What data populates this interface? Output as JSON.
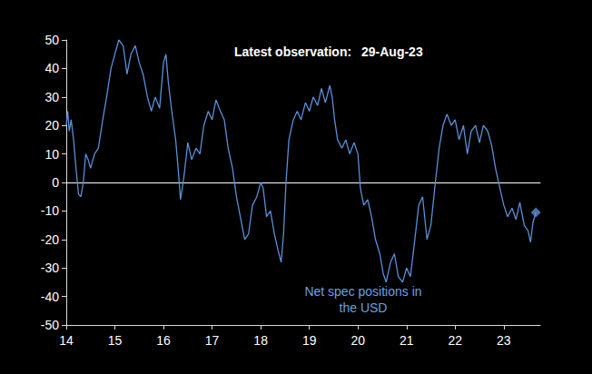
{
  "chart_data": {
    "type": "line",
    "annotations": [
      {
        "text": "Latest observation:"
      },
      {
        "text": "29-Aug-23"
      },
      {
        "text": "Net spec positions in\nthe USD"
      }
    ],
    "series": [
      {
        "type": "line",
        "color": "#5b8fd6",
        "line_style": "solid",
        "x": [
          14.0,
          14.03,
          14.06,
          14.1,
          14.15,
          14.2,
          14.25,
          14.3,
          14.35,
          14.4,
          14.45,
          14.5,
          14.58,
          14.66,
          14.75,
          14.83,
          14.92,
          15.0,
          15.08,
          15.17,
          15.25,
          15.33,
          15.42,
          15.5,
          15.58,
          15.67,
          15.75,
          15.83,
          15.92,
          16.0,
          16.05,
          16.1,
          16.17,
          16.25,
          16.3,
          16.35,
          16.42,
          16.5,
          16.58,
          16.67,
          16.75,
          16.83,
          16.92,
          17.0,
          17.08,
          17.17,
          17.25,
          17.33,
          17.42,
          17.5,
          17.58,
          17.67,
          17.75,
          17.83,
          17.92,
          18.0,
          18.05,
          18.12,
          18.2,
          18.28,
          18.36,
          18.42,
          18.47,
          18.52,
          18.58,
          18.67,
          18.75,
          18.83,
          18.92,
          19.0,
          19.08,
          19.17,
          19.25,
          19.33,
          19.42,
          19.47,
          19.52,
          19.58,
          19.67,
          19.75,
          19.83,
          19.92,
          20.0,
          20.05,
          20.12,
          20.2,
          20.28,
          20.36,
          20.45,
          20.52,
          20.58,
          20.67,
          20.75,
          20.83,
          20.92,
          21.0,
          21.08,
          21.17,
          21.25,
          21.33,
          21.42,
          21.5,
          21.58,
          21.67,
          21.75,
          21.83,
          21.92,
          22.0,
          22.08,
          22.17,
          22.25,
          22.33,
          22.42,
          22.5,
          22.58,
          22.67,
          22.75,
          22.83,
          22.92,
          23.0,
          23.08,
          23.17,
          23.25,
          23.33,
          23.42,
          23.5,
          23.55,
          23.6,
          23.66
        ],
        "values": [
          20,
          25,
          18,
          22,
          15,
          5,
          -4,
          -5,
          0,
          10,
          8,
          5,
          10,
          12,
          22,
          30,
          40,
          45,
          50,
          48,
          38,
          45,
          48,
          42,
          38,
          30,
          25,
          30,
          26,
          42,
          45,
          35,
          25,
          15,
          5,
          -6,
          2,
          14,
          8,
          12,
          10,
          20,
          25,
          22,
          29,
          25,
          22,
          12,
          5,
          -5,
          -12,
          -20,
          -18,
          -8,
          -5,
          0,
          -2,
          -12,
          -10,
          -18,
          -24,
          -28,
          -18,
          0,
          15,
          22,
          25,
          22,
          28,
          25,
          30,
          27,
          33,
          28,
          34,
          30,
          22,
          15,
          12,
          15,
          10,
          14,
          10,
          -2,
          -8,
          -6,
          -12,
          -20,
          -25,
          -32,
          -35,
          -28,
          -25,
          -33,
          -35,
          -30,
          -33,
          -20,
          -8,
          -5,
          -20,
          -15,
          -2,
          12,
          20,
          24,
          20,
          22,
          15,
          20,
          10,
          18,
          20,
          14,
          20,
          18,
          13,
          5,
          -2,
          -8,
          -12,
          -9,
          -13,
          -7,
          -15,
          -17,
          -21,
          -14,
          -10.5
        ]
      },
      {
        "type": "scatter",
        "color": "#5b8fd6",
        "marker": "diamond",
        "x": [
          23.66
        ],
        "values": [
          -10.5
        ]
      }
    ],
    "xlim": [
      14,
      23.75
    ],
    "xticks": [
      14,
      15,
      16,
      17,
      18,
      19,
      20,
      21,
      22,
      23
    ],
    "ylim": [
      -50,
      50
    ],
    "yticks": [
      -50,
      -40,
      -30,
      -20,
      -10,
      0,
      10,
      20,
      30,
      40,
      50
    ],
    "grid": false
  }
}
